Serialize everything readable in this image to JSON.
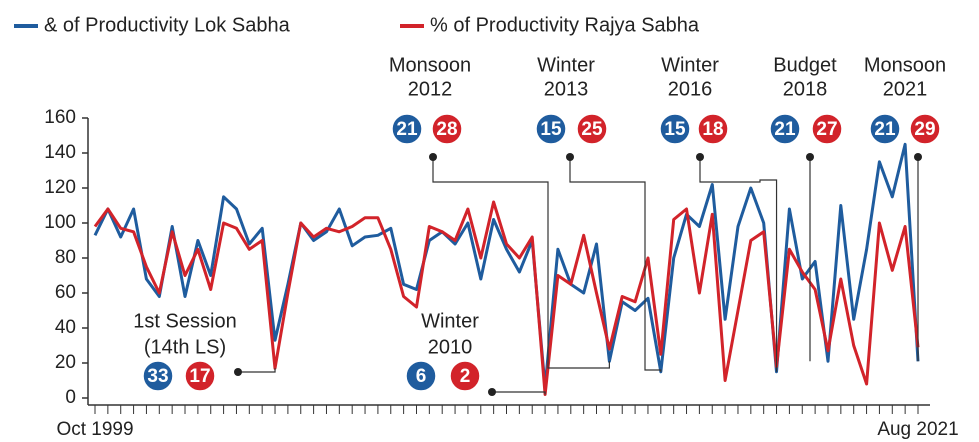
{
  "chart_data": {
    "type": "line",
    "categories": [
      "Oct 1999",
      null,
      null,
      null,
      null,
      null,
      null,
      null,
      null,
      null,
      null,
      null,
      null,
      null,
      null,
      null,
      null,
      null,
      null,
      null,
      null,
      null,
      null,
      null,
      null,
      null,
      null,
      null,
      null,
      null,
      null,
      null,
      null,
      null,
      null,
      null,
      null,
      null,
      null,
      null,
      null,
      null,
      null,
      null,
      null,
      null,
      null,
      null,
      null,
      null,
      null,
      null,
      null,
      null,
      null,
      null,
      null,
      null,
      null,
      null,
      null,
      null,
      null,
      null,
      "Aug 2021"
    ],
    "series": [
      {
        "name": "& of Productivity Lok Sabha",
        "color": "#1f5c9e",
        "values": [
          93,
          108,
          92,
          108,
          68,
          58,
          98,
          58,
          90,
          70,
          115,
          108,
          88,
          97,
          33,
          65,
          100,
          90,
          95,
          108,
          87,
          92,
          93,
          97,
          65,
          62,
          90,
          95,
          88,
          100,
          68,
          102,
          85,
          72,
          90,
          6,
          85,
          65,
          60,
          88,
          21,
          55,
          50,
          57,
          15,
          80,
          105,
          98,
          122,
          45,
          98,
          120,
          100,
          15,
          108,
          68,
          78,
          21,
          110,
          45,
          85,
          135,
          115,
          145,
          21
        ]
      },
      {
        "name": "% of Productivity Rajya Sabha",
        "color": "#d2232a",
        "values": [
          98,
          108,
          97,
          95,
          75,
          60,
          95,
          70,
          85,
          62,
          100,
          97,
          85,
          90,
          17,
          60,
          100,
          92,
          97,
          95,
          98,
          103,
          103,
          85,
          58,
          52,
          98,
          95,
          90,
          108,
          80,
          112,
          88,
          80,
          92,
          2,
          70,
          65,
          93,
          60,
          28,
          58,
          55,
          80,
          25,
          102,
          108,
          60,
          105,
          10,
          50,
          90,
          95,
          18,
          85,
          72,
          62,
          27,
          68,
          30,
          8,
          100,
          73,
          98,
          29
        ]
      }
    ],
    "ylim": [
      0,
      160
    ],
    "yticks": [
      0,
      20,
      40,
      60,
      80,
      100,
      120,
      140,
      160
    ],
    "grid": false,
    "legend": "top-left",
    "annotations": [
      {
        "lines": [
          "1st Session",
          "(14th LS)"
        ]
      },
      {
        "lines": [
          "Winter",
          "2010"
        ]
      },
      {
        "lines": [
          "Monsoon",
          "2012"
        ]
      },
      {
        "lines": [
          "Winter",
          "2013"
        ]
      },
      {
        "lines": [
          "Winter",
          "2016"
        ]
      },
      {
        "lines": [
          "Budget",
          "2018"
        ]
      },
      {
        "lines": [
          "Monsoon",
          "2021"
        ]
      }
    ]
  }
}
